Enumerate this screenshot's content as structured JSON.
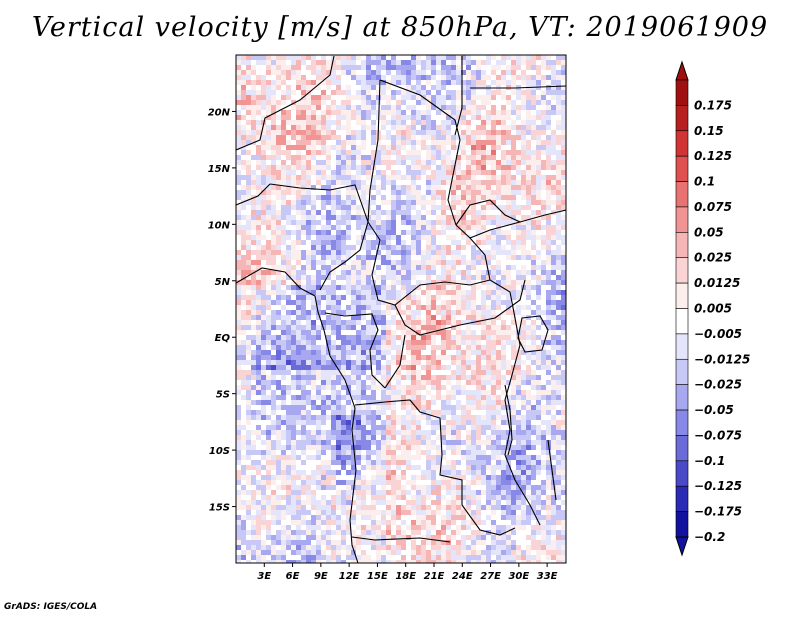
{
  "title": "Vertical velocity [m/s] at 850hPa, VT: 2019061909",
  "footer": "GrADS: IGES/COLA",
  "map": {
    "variable": "Vertical velocity",
    "units": "m/s",
    "level": "850hPa",
    "valid_time": "2019061909",
    "lon_range": [
      0,
      35
    ],
    "lat_range": [
      -20,
      25
    ],
    "lat_ticks": [
      {
        "value": 20,
        "label": "20N"
      },
      {
        "value": 15,
        "label": "15N"
      },
      {
        "value": 10,
        "label": "10N"
      },
      {
        "value": 5,
        "label": "5N"
      },
      {
        "value": 0,
        "label": "EQ"
      },
      {
        "value": -5,
        "label": "5S"
      },
      {
        "value": -10,
        "label": "10S"
      },
      {
        "value": -15,
        "label": "15S"
      }
    ],
    "lon_ticks": [
      {
        "value": 3,
        "label": "3E"
      },
      {
        "value": 6,
        "label": "6E"
      },
      {
        "value": 9,
        "label": "9E"
      },
      {
        "value": 12,
        "label": "12E"
      },
      {
        "value": 15,
        "label": "15E"
      },
      {
        "value": 18,
        "label": "18E"
      },
      {
        "value": 21,
        "label": "21E"
      },
      {
        "value": 24,
        "label": "24E"
      },
      {
        "value": 27,
        "label": "27E"
      },
      {
        "value": 30,
        "label": "30E"
      },
      {
        "value": 33,
        "label": "33E"
      }
    ]
  },
  "colorbar": {
    "levels": [
      {
        "label": "0.175",
        "color": "#a01010"
      },
      {
        "label": "0.15",
        "color": "#b82020"
      },
      {
        "label": "0.125",
        "color": "#d03434"
      },
      {
        "label": "0.1",
        "color": "#e05050"
      },
      {
        "label": "0.075",
        "color": "#e87272"
      },
      {
        "label": "0.05",
        "color": "#f09494"
      },
      {
        "label": "0.025",
        "color": "#f6b6b6"
      },
      {
        "label": "0.0125",
        "color": "#fad4d4"
      },
      {
        "label": "0.005",
        "color": "#fdeeee"
      },
      {
        "label": "−0.005",
        "color": "#ffffff"
      },
      {
        "label": "−0.0125",
        "color": "#e4e4fb"
      },
      {
        "label": "−0.025",
        "color": "#c8c8f6"
      },
      {
        "label": "−0.05",
        "color": "#a8a8f0"
      },
      {
        "label": "−0.075",
        "color": "#8888e6"
      },
      {
        "label": "−0.1",
        "color": "#6a6ad8"
      },
      {
        "label": "−0.125",
        "color": "#4a4ac8"
      },
      {
        "label": "−0.175",
        "color": "#2a2ab4"
      },
      {
        "label": "−0.2",
        "color": "#12129e"
      }
    ],
    "top_color": "#a01010",
    "bottom_color": "#12129e"
  }
}
